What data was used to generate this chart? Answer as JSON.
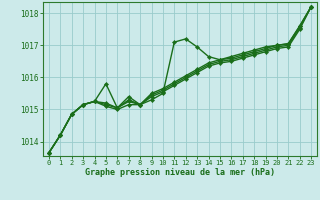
{
  "title": "Graphe pression niveau de la mer (hPa)",
  "bg_color": "#cceaea",
  "grid_color": "#99cccc",
  "line_color": "#1a6e1a",
  "spine_color": "#2d7a2d",
  "xlim": [
    -0.5,
    23.5
  ],
  "ylim": [
    1013.55,
    1018.35
  ],
  "yticks": [
    1014,
    1015,
    1016,
    1017,
    1018
  ],
  "xticks": [
    0,
    1,
    2,
    3,
    4,
    5,
    6,
    7,
    8,
    9,
    10,
    11,
    12,
    13,
    14,
    15,
    16,
    17,
    18,
    19,
    20,
    21,
    22,
    23
  ],
  "series": [
    [
      1013.65,
      1014.2,
      1014.85,
      1015.15,
      1015.25,
      1015.8,
      1015.05,
      1015.4,
      1015.15,
      1015.3,
      1015.5,
      1017.1,
      1017.2,
      1016.95,
      1016.65,
      1016.55,
      1016.65,
      1016.75,
      1016.85,
      1016.95,
      1017.0,
      1017.05,
      1017.6,
      1018.2
    ],
    [
      1013.65,
      1014.2,
      1014.85,
      1015.15,
      1015.25,
      1015.2,
      1015.05,
      1015.3,
      1015.15,
      1015.5,
      1015.65,
      1015.85,
      1016.05,
      1016.25,
      1016.45,
      1016.55,
      1016.6,
      1016.7,
      1016.8,
      1016.9,
      1017.0,
      1017.05,
      1017.6,
      1018.2
    ],
    [
      1013.65,
      1014.2,
      1014.85,
      1015.15,
      1015.25,
      1015.15,
      1015.05,
      1015.25,
      1015.15,
      1015.45,
      1015.6,
      1015.8,
      1016.0,
      1016.2,
      1016.4,
      1016.5,
      1016.55,
      1016.65,
      1016.75,
      1016.85,
      1016.95,
      1017.0,
      1017.55,
      1018.2
    ],
    [
      1013.65,
      1014.2,
      1014.85,
      1015.15,
      1015.25,
      1015.1,
      1015.0,
      1015.15,
      1015.15,
      1015.4,
      1015.55,
      1015.75,
      1015.95,
      1016.15,
      1016.35,
      1016.45,
      1016.5,
      1016.6,
      1016.7,
      1016.8,
      1016.9,
      1016.95,
      1017.5,
      1018.2
    ]
  ]
}
